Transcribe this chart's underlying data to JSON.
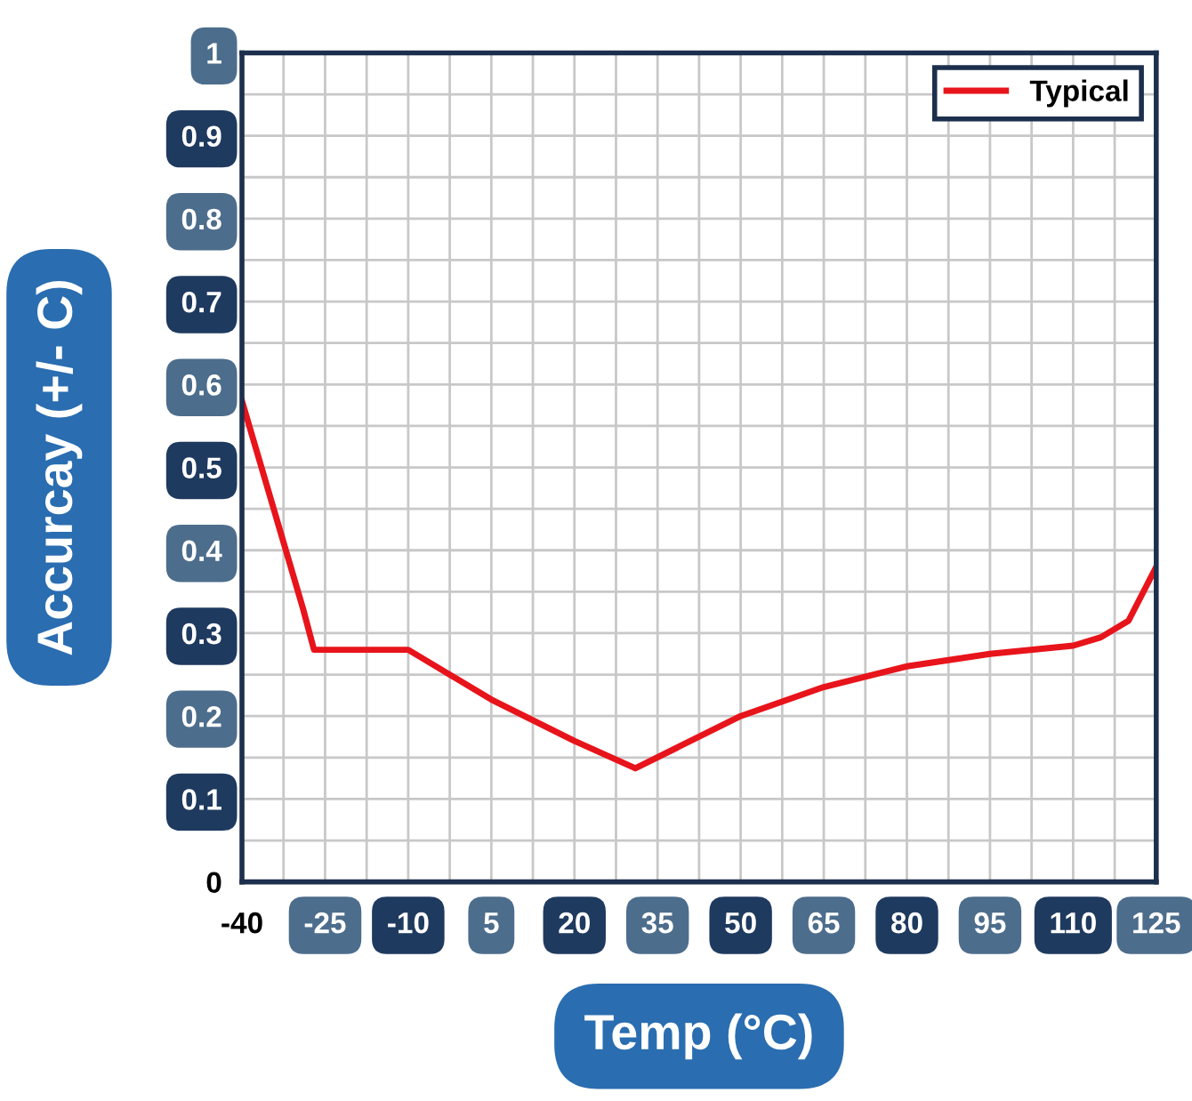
{
  "chart_data": {
    "type": "line",
    "xlabel": "Temp (°C)",
    "ylabel": "Accurcay (+/- C)",
    "xlim": [
      -40,
      125
    ],
    "xticks": [
      -40,
      -25,
      -10,
      5,
      20,
      35,
      50,
      65,
      80,
      95,
      110,
      125
    ],
    "ylim": [
      0,
      1
    ],
    "yticks": [
      0,
      0.1,
      0.2,
      0.3,
      0.4,
      0.5,
      0.6,
      0.7,
      0.8,
      0.9,
      1
    ],
    "grid": true,
    "legend": "top right",
    "line_style": "solid",
    "marker": "none",
    "series": [
      {
        "name": "Typical",
        "color": "#e8141b",
        "x": [
          -40,
          -29,
          -27,
          -10,
          5,
          20,
          31,
          50,
          65,
          80,
          95,
          110,
          115,
          120,
          125
        ],
        "values": [
          0.58,
          0.33,
          0.28,
          0.28,
          0.22,
          0.17,
          0.137,
          0.2,
          0.235,
          0.26,
          0.275,
          0.285,
          0.295,
          0.315,
          0.38
        ]
      }
    ]
  }
}
